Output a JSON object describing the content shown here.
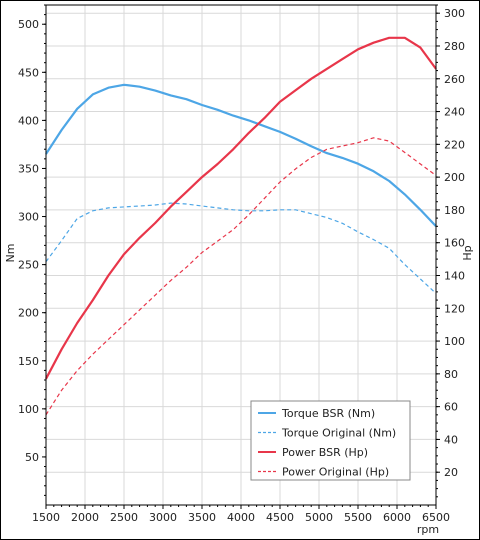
{
  "chart_data": {
    "type": "line",
    "x_unit": "rpm",
    "xlim": [
      1500,
      6500
    ],
    "x_ticks": [
      1500,
      2000,
      2500,
      3000,
      3500,
      4000,
      4500,
      5000,
      5500,
      6000,
      6500
    ],
    "y_left": {
      "label": "Nm",
      "ylim": [
        0,
        520
      ],
      "ticks": [
        50,
        100,
        150,
        200,
        250,
        300,
        350,
        400,
        450,
        500
      ]
    },
    "y_right": {
      "label": "Hp",
      "ylim": [
        0,
        305
      ],
      "ticks": [
        20,
        40,
        60,
        80,
        100,
        120,
        140,
        160,
        180,
        200,
        220,
        240,
        260,
        280,
        300
      ]
    },
    "grid": true,
    "legend_position": "bottom-right",
    "series": [
      {
        "name": "Torque BSR (Nm)",
        "axis": "left",
        "color": "#4da6e6",
        "dash": "solid",
        "points": [
          [
            1500,
            365
          ],
          [
            1700,
            390
          ],
          [
            1900,
            412
          ],
          [
            2100,
            427
          ],
          [
            2300,
            434
          ],
          [
            2500,
            437
          ],
          [
            2700,
            435
          ],
          [
            2900,
            431
          ],
          [
            3100,
            426
          ],
          [
            3300,
            422
          ],
          [
            3500,
            416
          ],
          [
            3700,
            411
          ],
          [
            3900,
            405
          ],
          [
            4100,
            400
          ],
          [
            4300,
            394
          ],
          [
            4500,
            388
          ],
          [
            4700,
            381
          ],
          [
            4900,
            373
          ],
          [
            5100,
            366
          ],
          [
            5300,
            361
          ],
          [
            5500,
            355
          ],
          [
            5700,
            347
          ],
          [
            5900,
            337
          ],
          [
            6100,
            323
          ],
          [
            6300,
            307
          ],
          [
            6500,
            290
          ]
        ]
      },
      {
        "name": "Torque Original (Nm)",
        "axis": "left",
        "color": "#4da6e6",
        "dash": "dashed",
        "points": [
          [
            1500,
            253
          ],
          [
            1700,
            275
          ],
          [
            1900,
            298
          ],
          [
            2100,
            306
          ],
          [
            2300,
            309
          ],
          [
            2500,
            310
          ],
          [
            2700,
            311
          ],
          [
            2900,
            312
          ],
          [
            3100,
            314
          ],
          [
            3300,
            313
          ],
          [
            3500,
            311
          ],
          [
            3700,
            309
          ],
          [
            3900,
            307
          ],
          [
            4100,
            306
          ],
          [
            4300,
            306
          ],
          [
            4500,
            307
          ],
          [
            4700,
            307
          ],
          [
            4900,
            303
          ],
          [
            5100,
            299
          ],
          [
            5300,
            293
          ],
          [
            5500,
            284
          ],
          [
            5700,
            276
          ],
          [
            5900,
            267
          ],
          [
            6100,
            250
          ],
          [
            6300,
            235
          ],
          [
            6500,
            220
          ]
        ]
      },
      {
        "name": "Power BSR (Hp)",
        "axis": "right",
        "color": "#e8364a",
        "dash": "solid",
        "points": [
          [
            1500,
            77
          ],
          [
            1700,
            95
          ],
          [
            1900,
            111
          ],
          [
            2100,
            125
          ],
          [
            2300,
            140
          ],
          [
            2500,
            153
          ],
          [
            2700,
            163
          ],
          [
            2900,
            172
          ],
          [
            3100,
            182
          ],
          [
            3300,
            191
          ],
          [
            3500,
            200
          ],
          [
            3700,
            208
          ],
          [
            3900,
            217
          ],
          [
            4100,
            227
          ],
          [
            4300,
            236
          ],
          [
            4500,
            246
          ],
          [
            4700,
            253
          ],
          [
            4900,
            260
          ],
          [
            5100,
            266
          ],
          [
            5300,
            272
          ],
          [
            5500,
            278
          ],
          [
            5700,
            282
          ],
          [
            5900,
            285
          ],
          [
            6100,
            285
          ],
          [
            6300,
            279
          ],
          [
            6500,
            266
          ]
        ]
      },
      {
        "name": "Power Original (Hp)",
        "axis": "right",
        "color": "#e8364a",
        "dash": "dashed",
        "points": [
          [
            1500,
            55
          ],
          [
            1700,
            70
          ],
          [
            1900,
            82
          ],
          [
            2100,
            92
          ],
          [
            2300,
            101
          ],
          [
            2500,
            110
          ],
          [
            2700,
            119
          ],
          [
            2900,
            128
          ],
          [
            3100,
            137
          ],
          [
            3300,
            145
          ],
          [
            3500,
            154
          ],
          [
            3700,
            161
          ],
          [
            3900,
            168
          ],
          [
            4100,
            177
          ],
          [
            4300,
            187
          ],
          [
            4500,
            197
          ],
          [
            4700,
            205
          ],
          [
            4900,
            212
          ],
          [
            5100,
            217
          ],
          [
            5300,
            219
          ],
          [
            5500,
            221
          ],
          [
            5700,
            224
          ],
          [
            5900,
            222
          ],
          [
            6100,
            215
          ],
          [
            6300,
            208
          ],
          [
            6500,
            201
          ]
        ]
      }
    ]
  }
}
